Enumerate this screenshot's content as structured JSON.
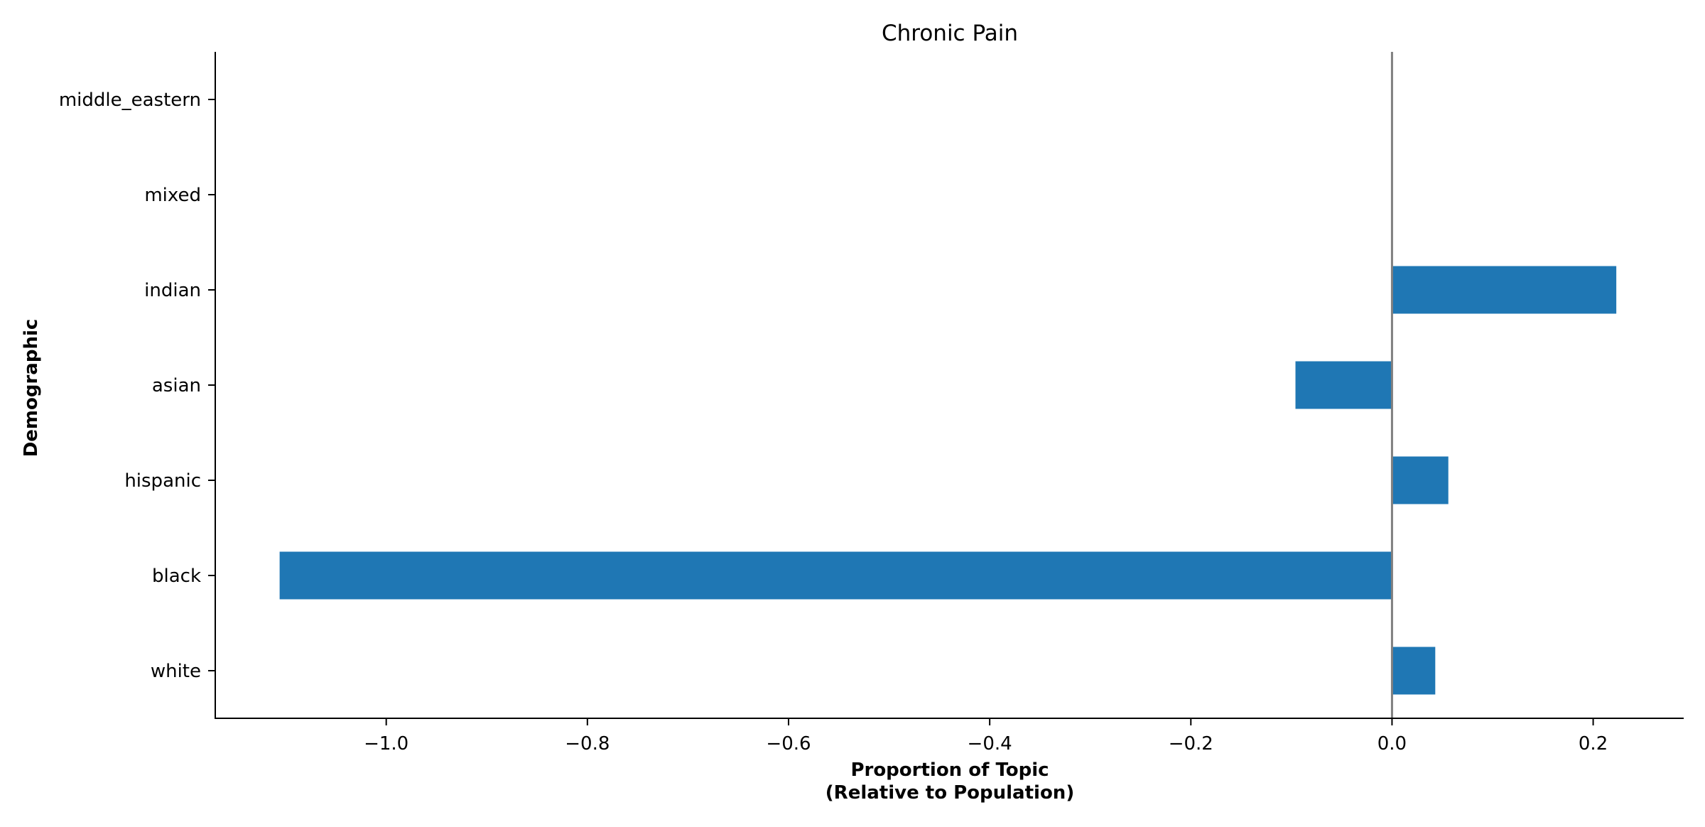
{
  "chart_data": {
    "type": "bar",
    "orientation": "horizontal",
    "title": "Chronic Pain",
    "xlabel_lines": [
      "Proportion of Topic",
      "(Relative to Population)"
    ],
    "ylabel": "Demographic",
    "categories": [
      "white",
      "black",
      "hispanic",
      "asian",
      "indian",
      "mixed",
      "middle_eastern"
    ],
    "values": [
      0.043,
      -1.106,
      0.056,
      -0.096,
      0.223,
      0.0,
      0.0
    ],
    "xlim": [
      -1.17,
      0.29
    ],
    "xticks": [
      -1.0,
      -0.8,
      -0.6,
      -0.4,
      -0.2,
      0.0,
      0.2
    ],
    "xtick_labels": [
      "−1.0",
      "−0.8",
      "−0.6",
      "−0.4",
      "−0.2",
      "0.0",
      "0.2"
    ],
    "reference_line": 0.0,
    "grid": false,
    "legend": "none",
    "colors": {
      "bar": "#1f77b4",
      "reference_line": "#808080",
      "axis": "#000000"
    }
  }
}
